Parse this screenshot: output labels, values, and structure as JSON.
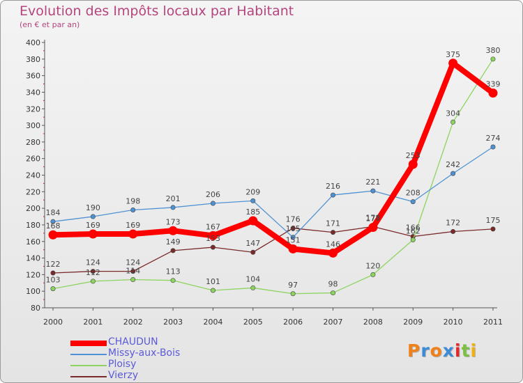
{
  "chart_data": {
    "type": "line",
    "title": "Evolution des Impôts locaux par Habitant",
    "subtitle": "(en € et par an)",
    "xlabel": "",
    "ylabel": "",
    "x": [
      "2000",
      "2001",
      "2002",
      "2003",
      "2004",
      "2005",
      "2006",
      "2007",
      "2008",
      "2009",
      "2010",
      "2011"
    ],
    "ylim": [
      80,
      400
    ],
    "yticks": [
      "80",
      "100",
      "120",
      "140",
      "160",
      "180",
      "200",
      "220",
      "240",
      "260",
      "280",
      "300",
      "320",
      "340",
      "360",
      "380",
      "400"
    ],
    "series": [
      {
        "name": "CHAUDUN",
        "values": [
          168,
          169,
          169,
          173,
          167,
          185,
          151,
          146,
          177,
          253,
          375,
          339
        ],
        "labels": [
          "168",
          "169",
          "169",
          "173",
          "167",
          "185",
          "151",
          "146",
          "177",
          "253",
          "375",
          "339"
        ],
        "color": "#ff0000"
      },
      {
        "name": "Missy-aux-Bois",
        "values": [
          184,
          190,
          198,
          201,
          206,
          209,
          165,
          216,
          221,
          208,
          242,
          274
        ],
        "labels": [
          "184",
          "190",
          "198",
          "201",
          "206",
          "209",
          "165",
          "216",
          "221",
          "208",
          "242",
          "274"
        ],
        "color": "#4f92d3"
      },
      {
        "name": "Ploisy",
        "values": [
          103,
          112,
          114,
          113,
          101,
          104,
          97,
          98,
          120,
          162,
          304,
          380
        ],
        "labels": [
          "103",
          "112",
          "114",
          "113",
          "101",
          "104",
          "97",
          "98",
          "120",
          "162",
          "304",
          "380"
        ],
        "color": "#8dd35f"
      },
      {
        "name": "Vierzy",
        "values": [
          122,
          124,
          124,
          149,
          153,
          147,
          176,
          171,
          178,
          166,
          172,
          175
        ],
        "labels": [
          "122",
          "124",
          "124",
          "149",
          "153",
          "147",
          "176",
          "171",
          "178",
          "166",
          "172",
          "175"
        ],
        "color": "#7a2a2a"
      }
    ],
    "legend_position": "bottom-left",
    "grid": false
  },
  "logo": {
    "text": "Proxiti",
    "letters": [
      "P",
      "r",
      "o",
      "x",
      "i",
      "t",
      "i"
    ],
    "colors": [
      "#f0801a",
      "#3d8ad6",
      "#f0801a",
      "#3d8ad6",
      "#e02a2a",
      "#7bc043",
      "#f0b010"
    ]
  }
}
